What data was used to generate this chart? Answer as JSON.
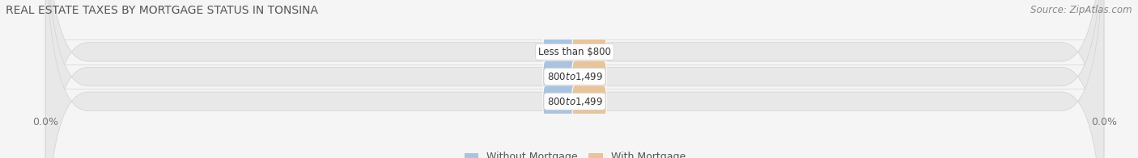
{
  "title": "REAL ESTATE TAXES BY MORTGAGE STATUS IN TONSINA",
  "source": "Source: ZipAtlas.com",
  "categories": [
    "Less than $800",
    "$800 to $1,499",
    "$800 to $1,499"
  ],
  "without_mortgage": [
    0.0,
    0.0,
    0.0
  ],
  "with_mortgage": [
    0.0,
    0.0,
    0.0
  ],
  "bar_color_without": "#aac4e0",
  "bar_color_with": "#e8c49a",
  "band_color": "#e8e8e8",
  "band_edge_color": "#d5d5d5",
  "bg_color": "#f5f5f5",
  "title_fontsize": 10,
  "source_fontsize": 8.5,
  "tick_fontsize": 9,
  "legend_fontsize": 9,
  "cat_fontsize": 8.5,
  "val_fontsize": 8,
  "xlim": [
    -100,
    100
  ],
  "figsize": [
    14.06,
    1.96
  ],
  "dpi": 100
}
